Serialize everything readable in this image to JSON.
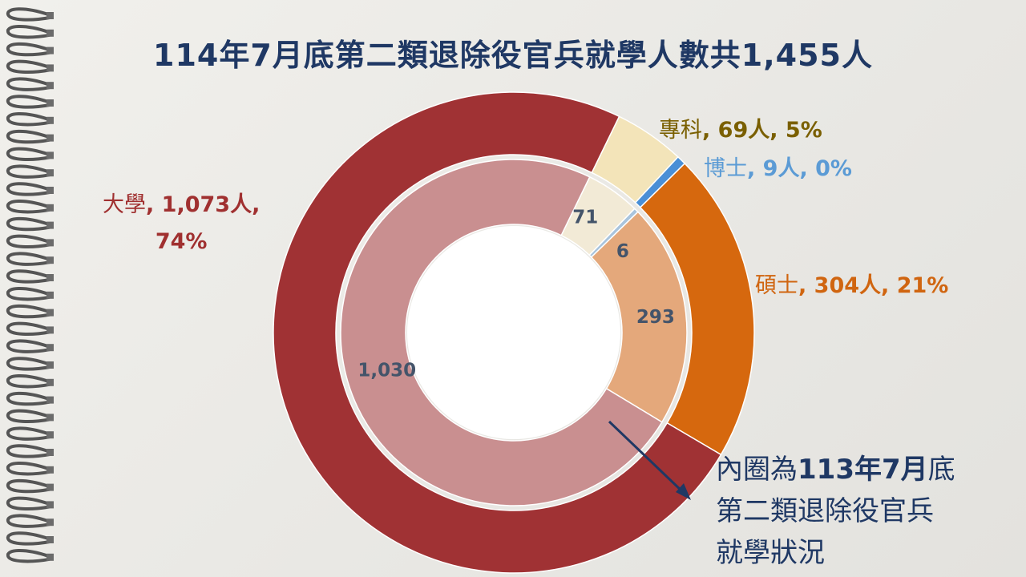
{
  "title": "114年7月底第二類退除役官兵就學人數共1,455人",
  "note": {
    "line1_prefix": "內圈為",
    "line1_bold": "113年7月",
    "line1_suffix": "底",
    "line2": "第二類退除役官兵",
    "line3": "就學狀況"
  },
  "labels": {
    "university": {
      "name": "大學",
      "sep1": ", ",
      "value": "1,073人",
      "sep2": ",",
      "percent": "74%"
    },
    "specialist": {
      "name": "專科",
      "sep1": ", ",
      "value": "69人",
      "sep2": ", ",
      "percent": "5%"
    },
    "phd": {
      "name": "博士",
      "sep1": ", ",
      "value": "9人",
      "sep2": ", ",
      "percent": "0%"
    },
    "master": {
      "name": "碩士",
      "sep1": ", ",
      "value": "304人",
      "sep2": ", ",
      "percent": "21%"
    }
  },
  "chart_data": {
    "type": "donut",
    "categories": [
      "專科",
      "博士",
      "碩士",
      "大學"
    ],
    "series": [
      {
        "name": "114年7月底",
        "ring": "outer",
        "values": [
          69,
          9,
          304,
          1073
        ],
        "colors": [
          "#f3e4b9",
          "#4a8fd6",
          "#d6680e",
          "#a03234"
        ]
      },
      {
        "name": "113年7月底",
        "ring": "inner",
        "values": [
          71,
          6,
          293,
          1030
        ],
        "colors": [
          "#f2ead6",
          "#a9c4dd",
          "#e4a87b",
          "#c98f90"
        ]
      }
    ],
    "inner_value_labels": [
      "71",
      "6",
      "293",
      "1,030"
    ],
    "start_angle_deg": 26
  }
}
